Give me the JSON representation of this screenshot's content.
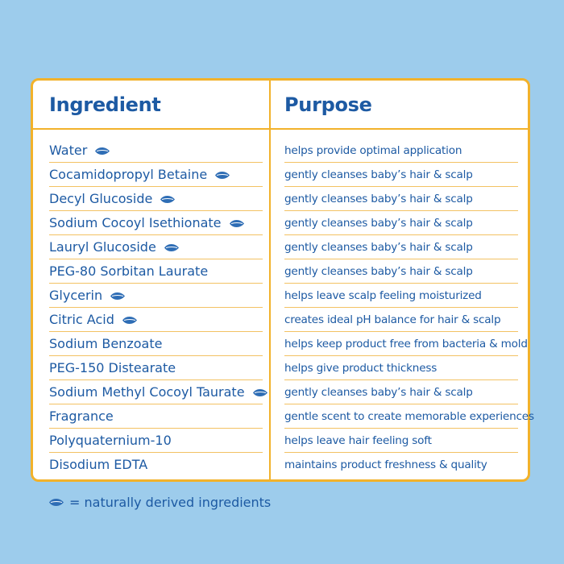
{
  "table": {
    "headers": {
      "ingredient": "Ingredient",
      "purpose": "Purpose"
    },
    "rows": [
      {
        "ingredient": "Water",
        "purpose": "helps provide optimal application",
        "natural": true
      },
      {
        "ingredient": "Cocamidopropyl Betaine",
        "purpose": "gently cleanses baby’s hair & scalp",
        "natural": true
      },
      {
        "ingredient": "Decyl Glucoside",
        "purpose": "gently cleanses baby’s hair & scalp",
        "natural": true
      },
      {
        "ingredient": "Sodium Cocoyl Isethionate",
        "purpose": "gently cleanses baby’s hair & scalp",
        "natural": true
      },
      {
        "ingredient": "Lauryl Glucoside",
        "purpose": "gently cleanses baby’s hair & scalp",
        "natural": true
      },
      {
        "ingredient": "PEG-80 Sorbitan Laurate",
        "purpose": "gently cleanses baby’s hair & scalp",
        "natural": false
      },
      {
        "ingredient": "Glycerin",
        "purpose": "helps leave scalp feeling moisturized",
        "natural": true
      },
      {
        "ingredient": "Citric Acid",
        "purpose": "creates ideal pH balance for hair & scalp",
        "natural": true
      },
      {
        "ingredient": "Sodium Benzoate",
        "purpose": "helps keep product free from bacteria & mold",
        "natural": false
      },
      {
        "ingredient": "PEG-150 Distearate",
        "purpose": "helps give product thickness",
        "natural": false
      },
      {
        "ingredient": "Sodium Methyl Cocoyl Taurate",
        "purpose": "gently cleanses baby’s hair & scalp",
        "natural": true
      },
      {
        "ingredient": "Fragrance",
        "purpose": "gentle scent to create memorable experiences",
        "natural": false
      },
      {
        "ingredient": "Polyquaternium-10",
        "purpose": "helps leave hair feeling soft",
        "natural": false
      },
      {
        "ingredient": "Disodium EDTA",
        "purpose": "maintains product freshness & quality",
        "natural": false
      }
    ]
  },
  "legend": {
    "text": "= naturally derived ingredients",
    "icon": "leaf-icon"
  },
  "colors": {
    "background": "#9dccec",
    "border": "#f2b22b",
    "text": "#1d5aa3",
    "leaf": "#2e6db5"
  }
}
